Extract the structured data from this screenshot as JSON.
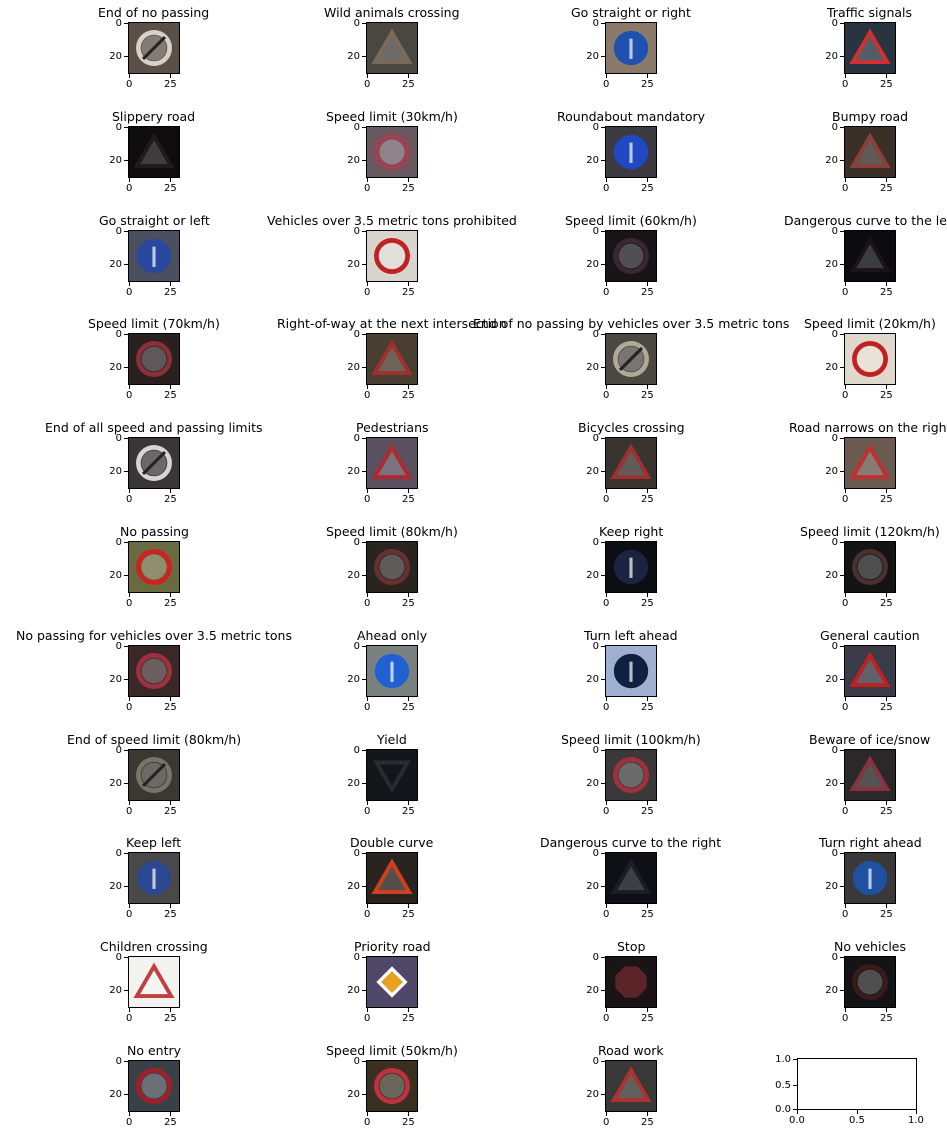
{
  "chart_data": {
    "type": "image_grid",
    "rows": 11,
    "cols": 4,
    "image_axis_ticks": {
      "x": [
        "0",
        "25"
      ],
      "y": [
        "0",
        "20"
      ]
    },
    "panels": [
      {
        "title": "End of no passing",
        "bg": "#5a5048",
        "sign": "#d8d0c8",
        "shape": "circle-slash"
      },
      {
        "title": "Wild animals crossing",
        "bg": "#4a4640",
        "sign": "#7a6a5a",
        "shape": "triangle"
      },
      {
        "title": "Go straight or right",
        "bg": "#8a7a6a",
        "sign": "#2050b0",
        "shape": "circle-blue"
      },
      {
        "title": "Traffic signals",
        "bg": "#2a3440",
        "sign": "#d03030",
        "shape": "triangle"
      },
      {
        "title": "Slippery road",
        "bg": "#0e0c0c",
        "sign": "#201a1a",
        "shape": "triangle"
      },
      {
        "title": "Speed limit (30km/h)",
        "bg": "#6a5860",
        "sign": "#a04050",
        "shape": "circle"
      },
      {
        "title": "Roundabout mandatory",
        "bg": "#3a3a40",
        "sign": "#2048c0",
        "shape": "circle-blue"
      },
      {
        "title": "Bumpy road",
        "bg": "#3a3028",
        "sign": "#8a4038",
        "shape": "triangle"
      },
      {
        "title": "Go straight or left",
        "bg": "#4a5060",
        "sign": "#2848a0",
        "shape": "circle-blue"
      },
      {
        "title": "Vehicles over 3.5 metric tons prohibited",
        "bg": "#d8d4d0",
        "sign": "#c02020",
        "shape": "circle"
      },
      {
        "title": "Speed limit (60km/h)",
        "bg": "#181418",
        "sign": "#3a2830",
        "shape": "circle"
      },
      {
        "title": "Dangerous curve to the left",
        "bg": "#0c0c10",
        "sign": "#1a1418",
        "shape": "triangle"
      },
      {
        "title": "Speed limit (70km/h)",
        "bg": "#2a2020",
        "sign": "#8a3038",
        "shape": "circle"
      },
      {
        "title": "Right-of-way at the next intersection",
        "bg": "#4a3e30",
        "sign": "#a03030",
        "shape": "triangle"
      },
      {
        "title": "End of no passing by vehicles over 3.5 metric tons",
        "bg": "#4a4840",
        "sign": "#b0a898",
        "shape": "circle-slash"
      },
      {
        "title": "Speed limit (20km/h)",
        "bg": "#e0d8cc",
        "sign": "#c02020",
        "shape": "circle"
      },
      {
        "title": "End of all speed and passing limits",
        "bg": "#3a3638",
        "sign": "#d8d4d0",
        "shape": "circle-slash"
      },
      {
        "title": "Pedestrians",
        "bg": "#5a5060",
        "sign": "#b02830",
        "shape": "triangle"
      },
      {
        "title": "Bicycles crossing",
        "bg": "#3a3430",
        "sign": "#a03030",
        "shape": "triangle"
      },
      {
        "title": "Road narrows on the right",
        "bg": "#6a5a50",
        "sign": "#c03030",
        "shape": "triangle"
      },
      {
        "title": "No passing",
        "bg": "#6a6a40",
        "sign": "#d02020",
        "shape": "circle"
      },
      {
        "title": "Speed limit (80km/h)",
        "bg": "#2a2420",
        "sign": "#6a3030",
        "shape": "circle"
      },
      {
        "title": "Keep right",
        "bg": "#0c0e14",
        "sign": "#1a2440",
        "shape": "circle-blue"
      },
      {
        "title": "Speed limit (120km/h)",
        "bg": "#141414",
        "sign": "#4a3030",
        "shape": "circle"
      },
      {
        "title": "No passing for vehicles over 3.5 metric tons",
        "bg": "#3a2828",
        "sign": "#a03040",
        "shape": "circle"
      },
      {
        "title": "Ahead only",
        "bg": "#7a8080",
        "sign": "#2060d0",
        "shape": "circle-blue"
      },
      {
        "title": "Turn left ahead",
        "bg": "#a0b0d0",
        "sign": "#102040",
        "shape": "circle-blue"
      },
      {
        "title": "General caution",
        "bg": "#3a3a48",
        "sign": "#c02020",
        "shape": "triangle"
      },
      {
        "title": "End of speed limit (80km/h)",
        "bg": "#3a3830",
        "sign": "#7a7468",
        "shape": "circle-slash"
      },
      {
        "title": "Yield",
        "bg": "#14161c",
        "sign": "#2a2a30",
        "shape": "triangle-down"
      },
      {
        "title": "Speed limit (100km/h)",
        "bg": "#3a3838",
        "sign": "#a03040",
        "shape": "circle"
      },
      {
        "title": "Beware of ice/snow",
        "bg": "#2a2828",
        "sign": "#8a3040",
        "shape": "triangle"
      },
      {
        "title": "Keep left",
        "bg": "#4a4848",
        "sign": "#2a4890",
        "shape": "circle-blue"
      },
      {
        "title": "Double curve",
        "bg": "#2a2420",
        "sign": "#d04020",
        "shape": "triangle"
      },
      {
        "title": "Dangerous curve to the right",
        "bg": "#0e1016",
        "sign": "#1a1c28",
        "shape": "triangle"
      },
      {
        "title": "Turn right ahead",
        "bg": "#3a3838",
        "sign": "#2050a0",
        "shape": "circle-blue"
      },
      {
        "title": "Children crossing",
        "bg": "#f4f2ee",
        "sign": "#c04040",
        "shape": "triangle"
      },
      {
        "title": "Priority road",
        "bg": "#504868",
        "sign": "#e8a020",
        "shape": "diamond"
      },
      {
        "title": "Stop",
        "bg": "#1a1416",
        "sign": "#5a2428",
        "shape": "octagon"
      },
      {
        "title": "No vehicles",
        "bg": "#141416",
        "sign": "#3a1a1a",
        "shape": "circle"
      },
      {
        "title": "No entry",
        "bg": "#3a4048",
        "sign": "#a02028",
        "shape": "circle"
      },
      {
        "title": "Speed limit (50km/h)",
        "bg": "#3a3020",
        "sign": "#c03040",
        "shape": "circle"
      },
      {
        "title": "Road work",
        "bg": "#3a3838",
        "sign": "#b03030",
        "shape": "triangle"
      }
    ],
    "empty_panel": {
      "xlim": [
        0.0,
        1.0
      ],
      "ylim": [
        0.0,
        1.0
      ],
      "x_ticks": [
        "0.0",
        "0.5",
        "1.0"
      ],
      "y_ticks": [
        "0.0",
        "0.5",
        "1.0"
      ]
    }
  }
}
